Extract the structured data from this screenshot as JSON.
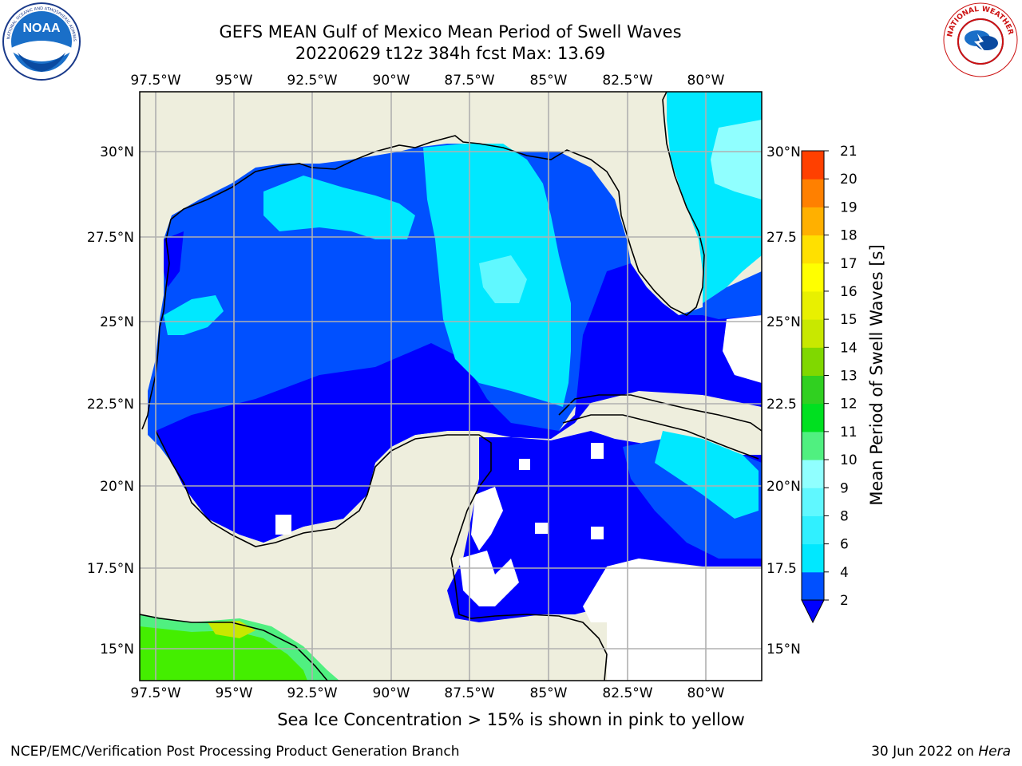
{
  "header": {
    "title_line1": "GEFS MEAN Gulf of Mexico Mean Period of Swell Waves",
    "title_line2": "20220629 t12z 384h fcst   Max: 13.69"
  },
  "logos": {
    "noaa_text": "NOAA",
    "noaa_ring_text": "NATIONAL OCEANIC AND ATMOSPHERIC ADMINISTRATION · U.S. DEPARTMENT OF COMMERCE",
    "nws_ring_text": "NATIONAL WEATHER SERVICE"
  },
  "map": {
    "lon_labels": [
      "97.5°W",
      "95°W",
      "92.5°W",
      "90°W",
      "87.5°W",
      "85°W",
      "82.5°W",
      "80°W"
    ],
    "lat_labels_left": [
      "30°N",
      "27.5°N",
      "25°N",
      "22.5°N",
      "20°N",
      "17.5°N",
      "15°N"
    ],
    "lat_labels_right": [
      "30°N",
      "27.5",
      "25°N",
      "22.5",
      "20°N",
      "17.5",
      "15°N"
    ],
    "colors": {
      "land": "#eeeedd",
      "sea_none": "#ffffff",
      "grid": "#b0b0b0"
    }
  },
  "colorbar": {
    "label": "Mean Period of Swell Waves [s]",
    "ticks": [
      "2",
      "4",
      "6",
      "8",
      "9",
      "10",
      "11",
      "12",
      "13",
      "14",
      "15",
      "16",
      "17",
      "18",
      "19",
      "20",
      "21"
    ],
    "colors": [
      "#0050ff",
      "#00e8ff",
      "#30f0ff",
      "#60f8ff",
      "#90ffff",
      "#50f080",
      "#00e020",
      "#30d020",
      "#80d800",
      "#c8e800",
      "#e8f000",
      "#ffff00",
      "#ffe000",
      "#ffb000",
      "#ff8000",
      "#ff4000",
      "#ff1a00",
      "#ff0000"
    ],
    "extend_color": "#0000ff"
  },
  "caption": "Sea Ice Concentration > 15% is shown in pink to yellow",
  "footer": {
    "left": "NCEP/EMC/Verification Post Processing Product Generation Branch",
    "right_prefix": "30 Jun 2022 on ",
    "right_host": "Hera"
  }
}
